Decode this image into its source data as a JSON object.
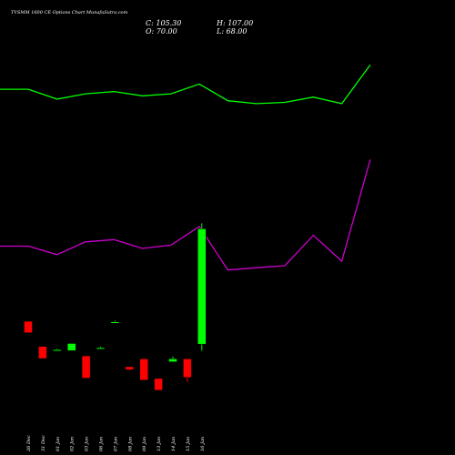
{
  "chart_data": {
    "type": "candlestick",
    "title": "TVSMM 1600 CE Options Chart MunafaSutra.com",
    "ohlc_readout": {
      "close": "C: 105.30",
      "open": "O: 70.00",
      "high": "H: 107.00",
      "low": "L: 68.00"
    },
    "categories": [
      "26 Dec",
      "31 Dec",
      "01 Jan",
      "02 Jan",
      "03 Jan",
      "06 Jan",
      "07 Jan",
      "08 Jan",
      "09 Jan",
      "13 Jan",
      "14 Jan",
      "15 Jan",
      "16 Jan"
    ],
    "candles": [
      {
        "open": 77.0,
        "high": 77.0,
        "low": 73.5,
        "close": 73.5
      },
      {
        "open": 69.3,
        "high": 69.3,
        "low": 65.6,
        "close": 65.6
      },
      {
        "open": 68.3,
        "high": 68.6,
        "low": 68.0,
        "close": 68.3
      },
      {
        "open": 68.0,
        "high": 70.2,
        "low": 68.0,
        "close": 70.2
      },
      {
        "open": 66.4,
        "high": 66.4,
        "low": 59.6,
        "close": 59.6
      },
      {
        "open": 68.9,
        "high": 69.2,
        "low": 68.5,
        "close": 68.9
      },
      {
        "open": 76.8,
        "high": 77.2,
        "low": 76.5,
        "close": 76.8
      },
      {
        "open": 63.1,
        "high": 63.1,
        "low": 61.9,
        "close": 62.2
      },
      {
        "open": 65.5,
        "high": 65.5,
        "low": 59.0,
        "close": 59.0
      },
      {
        "open": 59.5,
        "high": 59.5,
        "low": 55.9,
        "close": 55.9
      },
      {
        "open": 64.6,
        "high": 66.2,
        "low": 64.6,
        "close": 65.5
      },
      {
        "open": 65.5,
        "high": 65.5,
        "low": 58.4,
        "close": 59.8
      },
      {
        "open": 70.0,
        "high": 107.0,
        "low": 68.0,
        "close": 105.3
      }
    ],
    "upper_band": [
      148,
      148,
      145,
      146.6,
      147.3,
      146,
      146.6,
      149.6,
      144.5,
      143.6,
      144,
      145.6,
      143.6,
      155.5
    ],
    "lower_band": [
      100,
      100,
      97.4,
      101.3,
      102,
      99.3,
      100.3,
      106,
      92.7,
      93.4,
      94,
      103.3,
      95.4,
      126.5
    ],
    "band_x_index": [
      0,
      1,
      2,
      3,
      4,
      5,
      6,
      7,
      8,
      9,
      10,
      11,
      12,
      13
    ],
    "colors": {
      "background": "#000000",
      "bull": "#00ff00",
      "bear": "#ff0000",
      "upper_band": "#00ff00",
      "lower_band": "#cc00cc",
      "text": "#ffffff"
    },
    "grid": false,
    "legend": "none"
  }
}
